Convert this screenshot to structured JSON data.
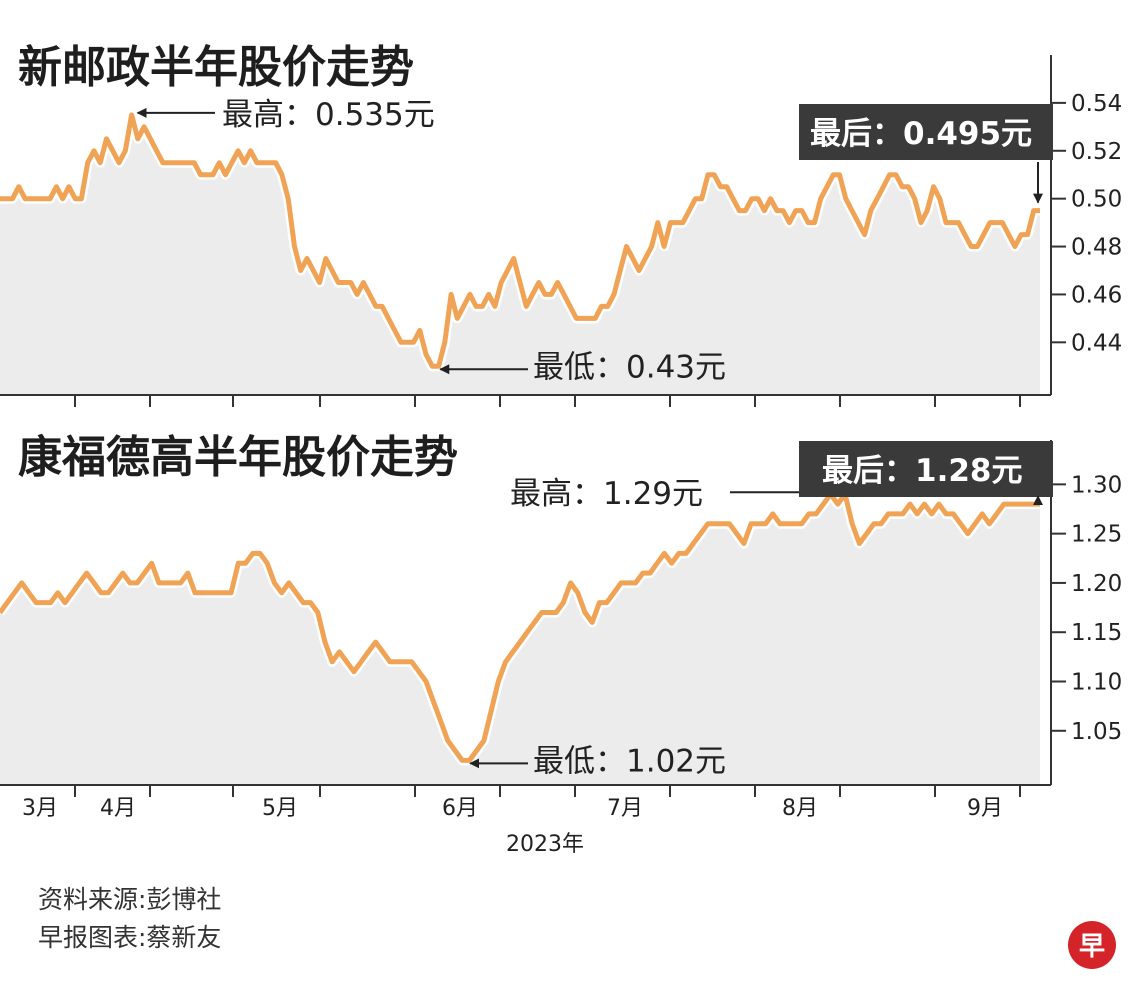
{
  "chart_data": [
    {
      "type": "line",
      "title": "新邮政半年股价走势",
      "y_ticks": [
        "0.54",
        "0.52",
        "0.50",
        "0.48",
        "0.46",
        "0.44"
      ],
      "ylim": [
        0.418,
        0.56
      ],
      "x_labels": [
        "3月",
        "4月",
        "5月",
        "6月",
        "7月",
        "8月",
        "9月"
      ],
      "series": [
        {
          "values": [
            0.5,
            0.5,
            0.5,
            0.505,
            0.5,
            0.5,
            0.5,
            0.5,
            0.5,
            0.505,
            0.5,
            0.505,
            0.5,
            0.5,
            0.515,
            0.52,
            0.515,
            0.525,
            0.52,
            0.515,
            0.52,
            0.535,
            0.525,
            0.53,
            0.525,
            0.52,
            0.515,
            0.515,
            0.515,
            0.515,
            0.515,
            0.515,
            0.51,
            0.51,
            0.51,
            0.515,
            0.51,
            0.515,
            0.52,
            0.515,
            0.52,
            0.515,
            0.515,
            0.515,
            0.515,
            0.51,
            0.5,
            0.48,
            0.47,
            0.475,
            0.47,
            0.465,
            0.475,
            0.47,
            0.465,
            0.465,
            0.465,
            0.46,
            0.465,
            0.46,
            0.455,
            0.455,
            0.45,
            0.445,
            0.44,
            0.44,
            0.44,
            0.445,
            0.435,
            0.43,
            0.43,
            0.44,
            0.46,
            0.45,
            0.455,
            0.46,
            0.455,
            0.455,
            0.46,
            0.455,
            0.465,
            0.47,
            0.475,
            0.465,
            0.455,
            0.46,
            0.465,
            0.46,
            0.46,
            0.465,
            0.46,
            0.455,
            0.45,
            0.45,
            0.45,
            0.45,
            0.455,
            0.455,
            0.46,
            0.47,
            0.48,
            0.475,
            0.47,
            0.475,
            0.48,
            0.49,
            0.48,
            0.49,
            0.49,
            0.49,
            0.495,
            0.5,
            0.5,
            0.51,
            0.51,
            0.505,
            0.505,
            0.5,
            0.495,
            0.495,
            0.5,
            0.5,
            0.495,
            0.5,
            0.495,
            0.495,
            0.49,
            0.495,
            0.495,
            0.49,
            0.49,
            0.5,
            0.505,
            0.51,
            0.51,
            0.5,
            0.495,
            0.49,
            0.485,
            0.495,
            0.5,
            0.505,
            0.51,
            0.51,
            0.505,
            0.505,
            0.5,
            0.49,
            0.495,
            0.505,
            0.5,
            0.49,
            0.49,
            0.49,
            0.485,
            0.48,
            0.48,
            0.485,
            0.49,
            0.49,
            0.49,
            0.485,
            0.48,
            0.485,
            0.485,
            0.495,
            0.495
          ],
          "line_color": "#f0a355"
        }
      ],
      "annotations": {
        "high": {
          "label": "最高：0.535元",
          "value": 0.535
        },
        "low": {
          "label": "最低：0.43元",
          "value": 0.43
        },
        "last": {
          "label": "最后：0.495元",
          "value": 0.495
        }
      }
    },
    {
      "type": "line",
      "title": "康福德高半年股价走势",
      "y_ticks": [
        "1.30",
        "1.25",
        "1.20",
        "1.15",
        "1.10",
        "1.05"
      ],
      "ylim": [
        0.995,
        1.345
      ],
      "x_labels": [
        "3月",
        "4月",
        "5月",
        "6月",
        "7月",
        "8月",
        "9月"
      ],
      "year_label": "2023年",
      "series": [
        {
          "values": [
            1.17,
            1.18,
            1.19,
            1.2,
            1.19,
            1.18,
            1.18,
            1.18,
            1.19,
            1.18,
            1.19,
            1.2,
            1.21,
            1.2,
            1.19,
            1.19,
            1.2,
            1.21,
            1.2,
            1.2,
            1.21,
            1.22,
            1.2,
            1.2,
            1.2,
            1.2,
            1.21,
            1.19,
            1.19,
            1.19,
            1.19,
            1.19,
            1.19,
            1.22,
            1.22,
            1.23,
            1.23,
            1.22,
            1.2,
            1.19,
            1.2,
            1.19,
            1.18,
            1.18,
            1.17,
            1.14,
            1.12,
            1.13,
            1.12,
            1.11,
            1.12,
            1.13,
            1.14,
            1.13,
            1.12,
            1.12,
            1.12,
            1.12,
            1.11,
            1.1,
            1.08,
            1.06,
            1.04,
            1.03,
            1.02,
            1.02,
            1.03,
            1.04,
            1.07,
            1.1,
            1.12,
            1.13,
            1.14,
            1.15,
            1.16,
            1.17,
            1.17,
            1.17,
            1.18,
            1.2,
            1.19,
            1.17,
            1.16,
            1.18,
            1.18,
            1.19,
            1.2,
            1.2,
            1.2,
            1.21,
            1.21,
            1.22,
            1.23,
            1.22,
            1.23,
            1.23,
            1.24,
            1.25,
            1.26,
            1.26,
            1.26,
            1.26,
            1.25,
            1.24,
            1.26,
            1.26,
            1.26,
            1.27,
            1.26,
            1.26,
            1.26,
            1.26,
            1.27,
            1.27,
            1.28,
            1.29,
            1.28,
            1.29,
            1.26,
            1.24,
            1.25,
            1.26,
            1.26,
            1.27,
            1.27,
            1.27,
            1.28,
            1.27,
            1.28,
            1.27,
            1.28,
            1.27,
            1.27,
            1.26,
            1.25,
            1.26,
            1.27,
            1.26,
            1.27,
            1.28,
            1.28,
            1.28,
            1.28,
            1.28,
            1.28
          ],
          "line_color": "#f0a355"
        }
      ],
      "annotations": {
        "high": {
          "label": "最高：1.29元",
          "value": 1.29
        },
        "low": {
          "label": "最低：1.02元",
          "value": 1.02
        },
        "last": {
          "label": "最后：1.28元",
          "value": 1.28
        }
      }
    }
  ],
  "source": {
    "line1": "资料来源:彭博社",
    "line2": "早报图表:蔡新友"
  },
  "logo": {
    "char": "早",
    "color": "#d4242a"
  },
  "colors": {
    "line": "#f0a355",
    "area": "#ececec",
    "label_bg": "#3a3a3a"
  }
}
